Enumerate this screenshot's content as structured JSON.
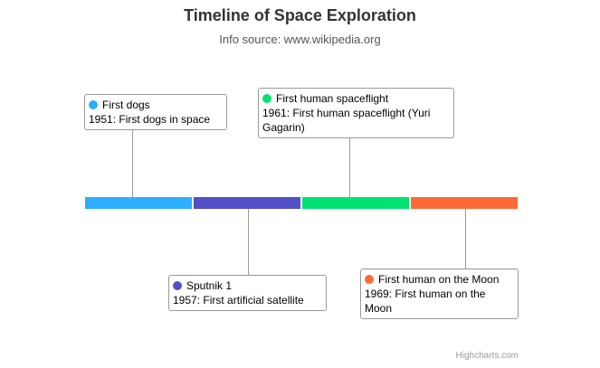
{
  "chart_data": {
    "type": "timeline",
    "title": "Timeline of Space Exploration",
    "subtitle": "Info source: www.wikipedia.org",
    "credits": "Highcharts.com",
    "events": [
      {
        "name": "First dogs",
        "label": "1951: First dogs in space",
        "color": "#2caffe",
        "position": "above"
      },
      {
        "name": "Sputnik 1",
        "label": "1957: First artificial satellite",
        "color": "#544fc5",
        "position": "below"
      },
      {
        "name": "First human spaceflight",
        "label": "1961: First human spaceflight (Yuri Gagarin)",
        "color": "#00e272",
        "position": "above"
      },
      {
        "name": "First human on the Moon",
        "label": "1969: First human on the Moon",
        "color": "#fe6a35",
        "position": "below"
      }
    ]
  }
}
